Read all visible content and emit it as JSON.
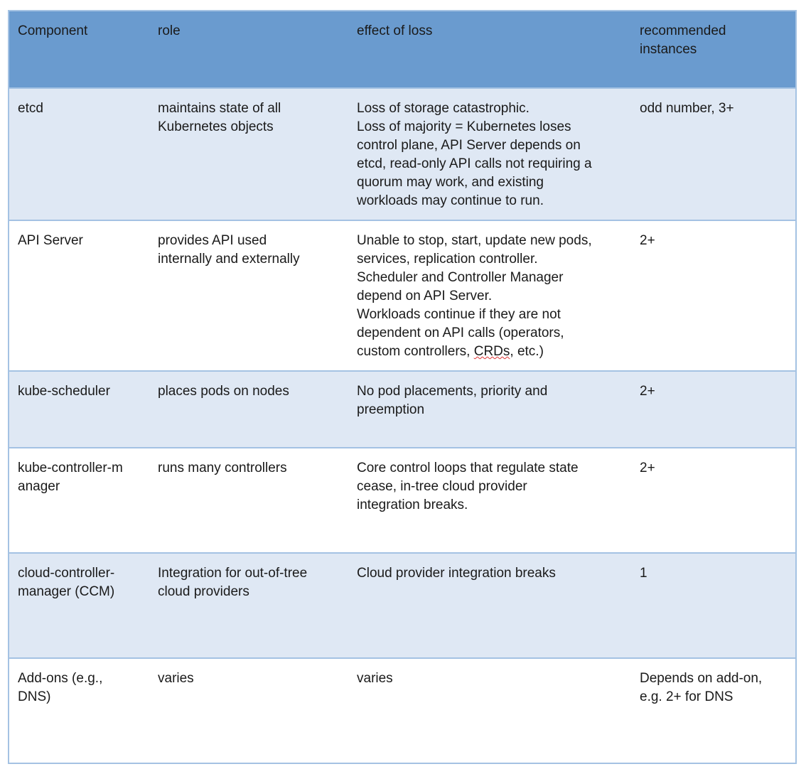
{
  "header": [
    "Component",
    "role",
    "effect of loss",
    "recommended\ninstances"
  ],
  "rows": [
    {
      "component": "etcd",
      "role": "maintains state of all\nKubernetes objects",
      "effect": "Loss of storage catastrophic.\nLoss of majority = Kubernetes loses\ncontrol plane, API Server depends on\netcd, read-only API calls not requiring a\nquorum may work, and existing\nworkloads may continue to run.",
      "instances": "odd number, 3+"
    },
    {
      "component": "API Server",
      "role": "provides API used\ninternally and externally",
      "effect": "Unable to stop, start, update new pods,\nservices, replication controller.\nScheduler and Controller Manager\ndepend on API Server.\nWorkloads continue if they are not\ndependent on API calls (operators,\ncustom controllers, CRDs, etc.)",
      "instances": "2+"
    },
    {
      "component": "kube-scheduler",
      "role": "places pods on nodes",
      "effect": "No pod placements, priority and\npreemption",
      "instances": "2+"
    },
    {
      "component": "kube-controller-m\nanager",
      "role": "runs many controllers",
      "effect": "Core control loops that regulate state\ncease, in-tree cloud provider\nintegration breaks.",
      "instances": "2+"
    },
    {
      "component": "cloud-controller-\nmanager (CCM)",
      "role": "Integration for out-of-tree\ncloud providers",
      "effect": "Cloud provider integration breaks",
      "instances": "1"
    },
    {
      "component": "Add-ons (e.g.,\nDNS)",
      "role": "varies",
      "effect": "varies",
      "instances": "Depends on add-on,\ne.g. 2+ for DNS"
    }
  ]
}
